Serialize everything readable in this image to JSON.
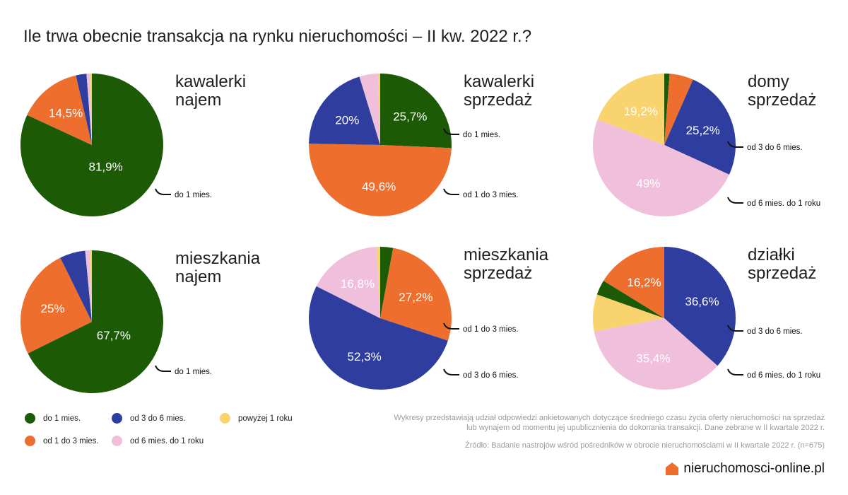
{
  "title": "Ile trwa obecnie transakcja na rynku nieruchomości – II kw. 2022 r.?",
  "colors": {
    "do_1_mies": "#1c5a06",
    "od_1_do_3_mies": "#ee6f2d",
    "od_3_do_6_mies": "#2f3e9e",
    "od_6_mies_do_1_roku": "#f0bfdb",
    "powyzej_1_roku": "#f8d36e"
  },
  "legend": [
    {
      "label": "do 1 mies.",
      "color": "#1c5a06"
    },
    {
      "label": "od 1 do 3 mies.",
      "color": "#ee6f2d"
    },
    {
      "label": "od 3 do 6 mies.",
      "color": "#2f3e9e"
    },
    {
      "label": "od 6 mies. do 1 roku",
      "color": "#f0bfdb"
    },
    {
      "label": "powyżej 1 roku",
      "color": "#f8d36e"
    }
  ],
  "chart_data": [
    {
      "type": "pie",
      "title_lines": [
        "kawalerki",
        "najem"
      ],
      "slices": [
        {
          "category": "do 1 mies.",
          "value": 81.9,
          "label": "81,9%"
        },
        {
          "category": "od 1 do 3 mies.",
          "value": 14.5,
          "label": "14,5%"
        },
        {
          "category": "od 3 do 6 mies.",
          "value": 2.4,
          "label": ""
        },
        {
          "category": "od 6 mies. do 1 roku",
          "value": 0.8,
          "label": ""
        },
        {
          "category": "powyżej 1 roku",
          "value": 0.4,
          "label": ""
        }
      ],
      "callouts": [
        {
          "text": "do 1 mies.",
          "category": "do 1 mies."
        }
      ]
    },
    {
      "type": "pie",
      "title_lines": [
        "kawalerki",
        "sprzedaż"
      ],
      "slices": [
        {
          "category": "do 1 mies.",
          "value": 25.7,
          "label": "25,7%"
        },
        {
          "category": "od 1 do 3 mies.",
          "value": 49.6,
          "label": "49,6%"
        },
        {
          "category": "od 3 do 6 mies.",
          "value": 20,
          "label": "20%"
        },
        {
          "category": "od 6 mies. do 1 roku",
          "value": 4.2,
          "label": ""
        },
        {
          "category": "powyżej 1 roku",
          "value": 0.5,
          "label": ""
        }
      ],
      "callouts": [
        {
          "text": "do 1 mies.",
          "category": "do 1 mies."
        },
        {
          "text": "od 1 do 3 mies.",
          "category": "od 1 do 3 mies."
        }
      ]
    },
    {
      "type": "pie",
      "title_lines": [
        "domy",
        "sprzedaż"
      ],
      "slices": [
        {
          "category": "do 1 mies.",
          "value": 1.2,
          "label": ""
        },
        {
          "category": "od 1 do 3 mies.",
          "value": 5.4,
          "label": ""
        },
        {
          "category": "od 3 do 6 mies.",
          "value": 25.2,
          "label": "25,2%"
        },
        {
          "category": "od 6 mies. do 1 roku",
          "value": 49,
          "label": "49%"
        },
        {
          "category": "powyżej 1 roku",
          "value": 19.2,
          "label": "19,2%"
        }
      ],
      "callouts": [
        {
          "text": "od 3 do 6 mies.",
          "category": "od 3 do 6 mies."
        },
        {
          "text": "od 6 mies. do 1 roku",
          "category": "od 6 mies. do 1 roku"
        }
      ]
    },
    {
      "type": "pie",
      "title_lines": [
        "mieszkania",
        "najem"
      ],
      "slices": [
        {
          "category": "do 1 mies.",
          "value": 67.7,
          "label": "67,7%"
        },
        {
          "category": "od 1 do 3 mies.",
          "value": 25,
          "label": "25%"
        },
        {
          "category": "od 3 do 6 mies.",
          "value": 5.8,
          "label": ""
        },
        {
          "category": "od 6 mies. do 1 roku",
          "value": 1.1,
          "label": ""
        },
        {
          "category": "powyżej 1 roku",
          "value": 0.4,
          "label": ""
        }
      ],
      "callouts": [
        {
          "text": "do 1 mies.",
          "category": "do 1 mies."
        }
      ]
    },
    {
      "type": "pie",
      "title_lines": [
        "mieszkania",
        "sprzedaż"
      ],
      "slices": [
        {
          "category": "do 1 mies.",
          "value": 2.9,
          "label": ""
        },
        {
          "category": "od 1 do 3 mies.",
          "value": 27.2,
          "label": "27,2%"
        },
        {
          "category": "od 3 do 6 mies.",
          "value": 52.3,
          "label": "52,3%"
        },
        {
          "category": "od 6 mies. do 1 roku",
          "value": 16.8,
          "label": "16,8%"
        },
        {
          "category": "powyżej 1 roku",
          "value": 0.8,
          "label": ""
        }
      ],
      "callouts": [
        {
          "text": "od 1 do 3 mies.",
          "category": "od 1 do 3 mies."
        },
        {
          "text": "od 3 do 6 mies.",
          "category": "od 3 do 6 mies."
        }
      ]
    },
    {
      "type": "pie",
      "title_lines": [
        "działki",
        "sprzedaż"
      ],
      "slices": [
        {
          "category": "od 3 do 6 mies.",
          "value": 36.6,
          "label": "36,6%"
        },
        {
          "category": "od 6 mies. do 1 roku",
          "value": 35.4,
          "label": "35,4%"
        },
        {
          "category": "powyżej 1 roku",
          "value": 8.4,
          "label": ""
        },
        {
          "category": "do 1 mies.",
          "value": 3.4,
          "label": ""
        },
        {
          "category": "od 1 do 3 mies.",
          "value": 16.2,
          "label": "16,2%"
        }
      ],
      "callouts": [
        {
          "text": "od 3 do 6 mies.",
          "category": "od 3 do 6 mies."
        },
        {
          "text": "od 6 mies. do 1 roku",
          "category": "od 6 mies. do 1 roku"
        }
      ]
    }
  ],
  "footnote": {
    "description_lines": [
      "Wykresy przedstawiają udział odpowiedzi ankietowanych dotyczące średniego czasu życia oferty nieruchomości na sprzedaż",
      "lub wynajem od momentu jej upublicznienia do dokonania transakcji. Dane zebrane w II kwartale 2022 r."
    ],
    "source": "Źródło: Badanie nastrojów wśród pośredników w obrocie nieruchomościami w II kwartale 2022 r. (n=675)"
  },
  "brand": {
    "text": "nieruchomosci-online.pl",
    "icon": "house-icon",
    "icon_color": "#ee6f2d"
  }
}
